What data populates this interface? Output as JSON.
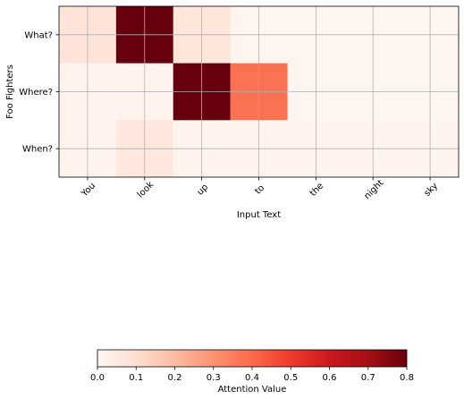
{
  "chart_data": {
    "type": "heatmap",
    "title": "",
    "xlabel": "Input Text",
    "ylabel": "Foo Fighters",
    "x_categories": [
      "You",
      "look",
      "up",
      "to",
      "the",
      "night",
      "sky"
    ],
    "y_categories": [
      "What?",
      "Where?",
      "When?"
    ],
    "values": [
      [
        0.08,
        0.8,
        0.07,
        0.0,
        0.0,
        0.0,
        0.0
      ],
      [
        0.01,
        0.01,
        0.8,
        0.38,
        0.0,
        0.0,
        0.0
      ],
      [
        0.01,
        0.06,
        0.01,
        0.01,
        0.01,
        0.01,
        0.01
      ]
    ],
    "colormap": "Reds",
    "grid": true,
    "colorbar": {
      "label": "Attention Value",
      "range": [
        0,
        0.8
      ],
      "ticks": [
        "0.0",
        "0.1",
        "0.2",
        "0.3",
        "0.4",
        "0.5",
        "0.6",
        "0.7",
        "0.8"
      ],
      "placement": "bottom"
    }
  }
}
